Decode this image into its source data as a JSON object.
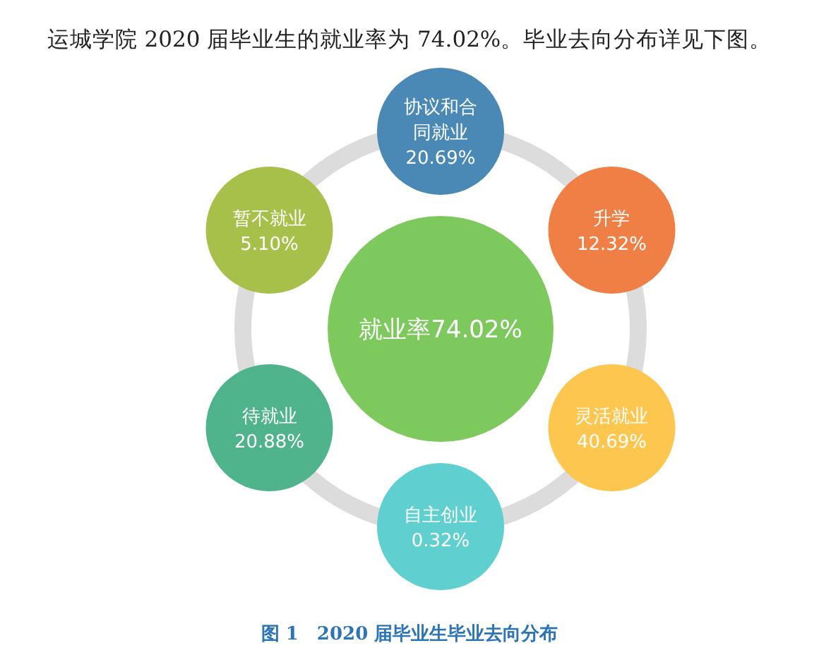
{
  "chart_data": {
    "type": "other",
    "title": "运城学院 2020 届毕业生的就业率为 74.02%。毕业去向分布详见下图。",
    "annotations": [
      "就业率74.02%",
      "图 1　2020 届毕业生毕业去向分布"
    ],
    "categories": [
      "协议和合同就业",
      "升学",
      "灵活就业",
      "自主创业",
      "待就业",
      "暂不就业"
    ],
    "values": [
      20.69,
      12.32,
      40.69,
      0.32,
      20.88,
      5.1
    ],
    "value_labels": [
      "20.69%",
      "12.32%",
      "40.69%",
      "0.32%",
      "20.88%",
      "5.10%"
    ],
    "colors": [
      "#4a89b5",
      "#f07f45",
      "#fdc64f",
      "#5fcfcf",
      "#4fb38c",
      "#a6c04a"
    ]
  }
}
